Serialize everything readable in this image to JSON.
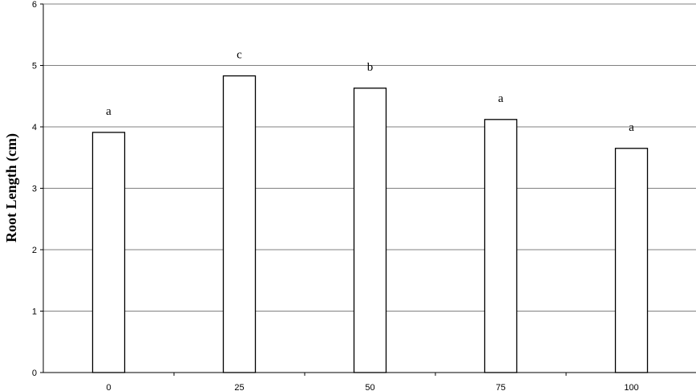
{
  "chart_data": {
    "type": "bar",
    "title": "",
    "xlabel": "",
    "ylabel": "Root Length (cm)",
    "categories": [
      "0",
      "25",
      "50",
      "75",
      "100"
    ],
    "values": [
      3.91,
      4.83,
      4.63,
      4.12,
      3.65
    ],
    "annotations": [
      "a",
      "c",
      "b",
      "a",
      "a"
    ],
    "ylim": [
      0,
      6
    ],
    "yticks": [
      "0",
      "1",
      "2",
      "3",
      "4",
      "5",
      "6"
    ],
    "grid": true,
    "bar_fill": "#ffffff",
    "bar_stroke": "#000000",
    "grid_color": "#808080"
  }
}
